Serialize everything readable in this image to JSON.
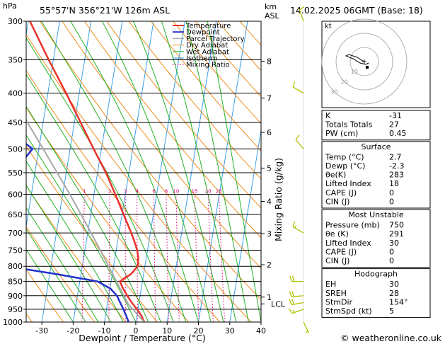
{
  "header": {
    "location": "55°57'N  356°21'W  126m  ASL",
    "datetime": "14.02.2025  06GMT  (Base: 18)",
    "hpa_label": "hPa",
    "km_label": "km",
    "asl_label": "ASL"
  },
  "colors": {
    "temperature": "#e8322c",
    "dewpoint": "#2233cc",
    "parcel": "#a8a8a8",
    "dry_adiabat": "#f08c1e",
    "wet_adiabat": "#22b322",
    "isotherm": "#3aa0ea",
    "mixing_ratio": "#e0007a",
    "wind": "#b0c000"
  },
  "legend": [
    "Temperature",
    "Dewpoint",
    "Parcel Trajectory",
    "Dry Adiabat",
    "Wet Adiabat",
    "Isotherm",
    "Mixing Ratio"
  ],
  "chart_data": {
    "type": "line",
    "xlabel": "Dewpoint / Temperature (°C)",
    "ylabel_right": "Mixing Ratio (g/kg)",
    "xlim": [
      -35,
      40
    ],
    "ylim": [
      1000,
      300
    ],
    "y_scale": "log",
    "skew_degC_per_decade": 30,
    "x_ticks": [
      -30,
      -20,
      -10,
      0,
      10,
      20,
      30,
      40
    ],
    "pressure_ticks": [
      300,
      350,
      400,
      450,
      500,
      550,
      600,
      650,
      700,
      750,
      800,
      850,
      900,
      950,
      1000
    ],
    "km_ticks": [
      {
        "label": "1",
        "p": 905
      },
      {
        "label": "2",
        "p": 795
      },
      {
        "label": "3",
        "p": 702
      },
      {
        "label": "4",
        "p": 617
      },
      {
        "label": "5",
        "p": 540
      },
      {
        "label": "6",
        "p": 468
      },
      {
        "label": "7",
        "p": 408
      },
      {
        "label": "8",
        "p": 352
      }
    ],
    "lcl": {
      "label": "LCL",
      "p": 930
    },
    "mixing_ratio_labels": [
      "1",
      "2",
      "3",
      "4",
      "6",
      "8",
      "10",
      "15",
      "20",
      "25"
    ],
    "mixing_ratio_values": [
      1,
      2,
      3,
      4,
      6,
      8,
      10,
      15,
      20,
      25
    ],
    "series": [
      {
        "name": "Temperature",
        "points": [
          [
            1000,
            2.7
          ],
          [
            975,
            1.5
          ],
          [
            950,
            -0.3
          ],
          [
            925,
            -2.3
          ],
          [
            900,
            -4.1
          ],
          [
            875,
            -5.8
          ],
          [
            850,
            -7.2
          ],
          [
            825,
            -4.0
          ],
          [
            800,
            -2.3
          ],
          [
            775,
            -2.5
          ],
          [
            750,
            -3.3
          ],
          [
            725,
            -4.6
          ],
          [
            700,
            -6.1
          ],
          [
            650,
            -9.5
          ],
          [
            600,
            -13.2
          ],
          [
            550,
            -17.3
          ],
          [
            500,
            -22.5
          ],
          [
            450,
            -28.0
          ],
          [
            400,
            -34.2
          ],
          [
            350,
            -41.5
          ],
          [
            300,
            -49.5
          ]
        ]
      },
      {
        "name": "Dewpoint",
        "points": [
          [
            1000,
            -2.3
          ],
          [
            975,
            -3.4
          ],
          [
            950,
            -4.6
          ],
          [
            925,
            -6.0
          ],
          [
            900,
            -7.4
          ],
          [
            875,
            -9.8
          ],
          [
            850,
            -14.3
          ],
          [
            825,
            -28.0
          ],
          [
            800,
            -44.0
          ],
          [
            775,
            -52.0
          ],
          [
            750,
            -59.0
          ],
          [
            725,
            -50.0
          ],
          [
            700,
            -44.5
          ],
          [
            675,
            -46.0
          ],
          [
            650,
            -48.0
          ],
          [
            625,
            -52.0
          ],
          [
            600,
            -56.0
          ],
          [
            575,
            -54.0
          ],
          [
            550,
            -49.0
          ],
          [
            525,
            -44.5
          ],
          [
            500,
            -42.0
          ],
          [
            475,
            -48.0
          ],
          [
            450,
            -53.0
          ],
          [
            425,
            -55.5
          ],
          [
            400,
            -58.0
          ],
          [
            375,
            -59.0
          ],
          [
            350,
            -60.0
          ],
          [
            325,
            -62.0
          ],
          [
            300,
            -64.0
          ]
        ]
      },
      {
        "name": "Parcel Trajectory",
        "points": [
          [
            1000,
            2.7
          ],
          [
            930,
            -3.4
          ],
          [
            900,
            -5.2
          ],
          [
            850,
            -8.3
          ],
          [
            800,
            -11.6
          ],
          [
            750,
            -15.1
          ],
          [
            700,
            -18.9
          ],
          [
            650,
            -23.1
          ],
          [
            600,
            -27.7
          ],
          [
            550,
            -32.9
          ],
          [
            500,
            -38.6
          ],
          [
            450,
            -45.0
          ],
          [
            400,
            -52.0
          ],
          [
            350,
            -59.5
          ],
          [
            300,
            -67.0
          ]
        ]
      }
    ],
    "wind_barbs": [
      {
        "p": 1000,
        "dir": 154,
        "speed": 5
      },
      {
        "p": 950,
        "dir": 250,
        "speed": 15
      },
      {
        "p": 925,
        "dir": 260,
        "speed": 20
      },
      {
        "p": 900,
        "dir": 265,
        "speed": 20
      },
      {
        "p": 850,
        "dir": 270,
        "speed": 20
      },
      {
        "p": 700,
        "dir": 300,
        "speed": 15
      },
      {
        "p": 500,
        "dir": 320,
        "speed": 10
      },
      {
        "p": 400,
        "dir": 300,
        "speed": 10
      },
      {
        "p": 300,
        "dir": 340,
        "speed": 10
      }
    ]
  },
  "hodograph": {
    "unit_label": "kt",
    "ring_labels": [
      "10",
      "20",
      "30"
    ],
    "points": [
      [
        0,
        0
      ],
      [
        -2,
        1
      ],
      [
        -5,
        3
      ],
      [
        -11,
        5
      ],
      [
        -13,
        4
      ],
      [
        -8,
        2
      ],
      [
        -3,
        -1
      ],
      [
        1,
        -2
      ],
      [
        3,
        -1
      ]
    ],
    "storm_motion": [
      2,
      -4
    ]
  },
  "indices": {
    "table1": [
      {
        "label": "K",
        "value": "-31"
      },
      {
        "label": "Totals Totals",
        "value": "27"
      },
      {
        "label": "PW (cm)",
        "value": "0.45"
      }
    ],
    "surface": {
      "title": "Surface",
      "rows": [
        {
          "label": "Temp (°C)",
          "value": "2.7"
        },
        {
          "label": "Dewp (°C)",
          "value": "-2.3"
        },
        {
          "label": "θe(K)",
          "value": "283"
        },
        {
          "label": "Lifted Index",
          "value": "18"
        },
        {
          "label": "CAPE (J)",
          "value": "0"
        },
        {
          "label": "CIN (J)",
          "value": "0"
        }
      ]
    },
    "most_unstable": {
      "title": "Most Unstable",
      "rows": [
        {
          "label": "Pressure (mb)",
          "value": "750"
        },
        {
          "label": "θe (K)",
          "value": "291"
        },
        {
          "label": "Lifted Index",
          "value": "30"
        },
        {
          "label": "CAPE (J)",
          "value": "0"
        },
        {
          "label": "CIN (J)",
          "value": "0"
        }
      ]
    },
    "hodograph_table": {
      "title": "Hodograph",
      "rows": [
        {
          "label": "EH",
          "value": "30"
        },
        {
          "label": "SREH",
          "value": "28"
        },
        {
          "label": "StmDir",
          "value": "154°"
        },
        {
          "label": "StmSpd (kt)",
          "value": "5"
        }
      ]
    }
  },
  "footer": {
    "copyright": "© weatheronline.co.uk"
  }
}
